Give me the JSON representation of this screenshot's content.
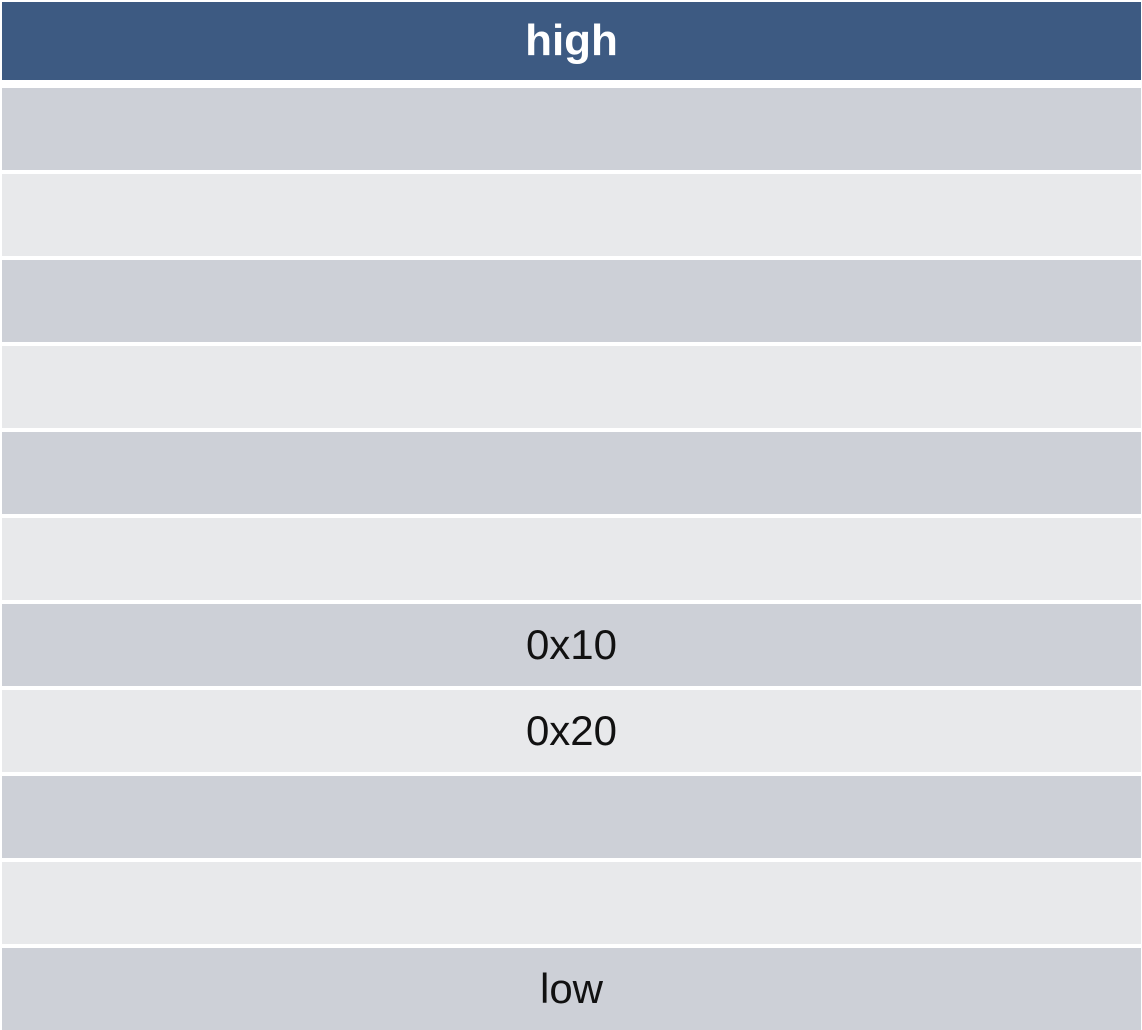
{
  "header": {
    "label": "high"
  },
  "rows": [
    {
      "label": "",
      "shade": "dark"
    },
    {
      "label": "",
      "shade": "light"
    },
    {
      "label": "",
      "shade": "dark"
    },
    {
      "label": "",
      "shade": "light"
    },
    {
      "label": "",
      "shade": "dark"
    },
    {
      "label": "",
      "shade": "light"
    },
    {
      "label": "0x10",
      "shade": "dark"
    },
    {
      "label": "0x20",
      "shade": "light"
    },
    {
      "label": "",
      "shade": "dark"
    },
    {
      "label": "",
      "shade": "light"
    },
    {
      "label": "low",
      "shade": "dark"
    }
  ],
  "colors": {
    "header_bg": "#3d5a82",
    "row_dark": "#cdd0d7",
    "row_light": "#e8e9eb"
  }
}
